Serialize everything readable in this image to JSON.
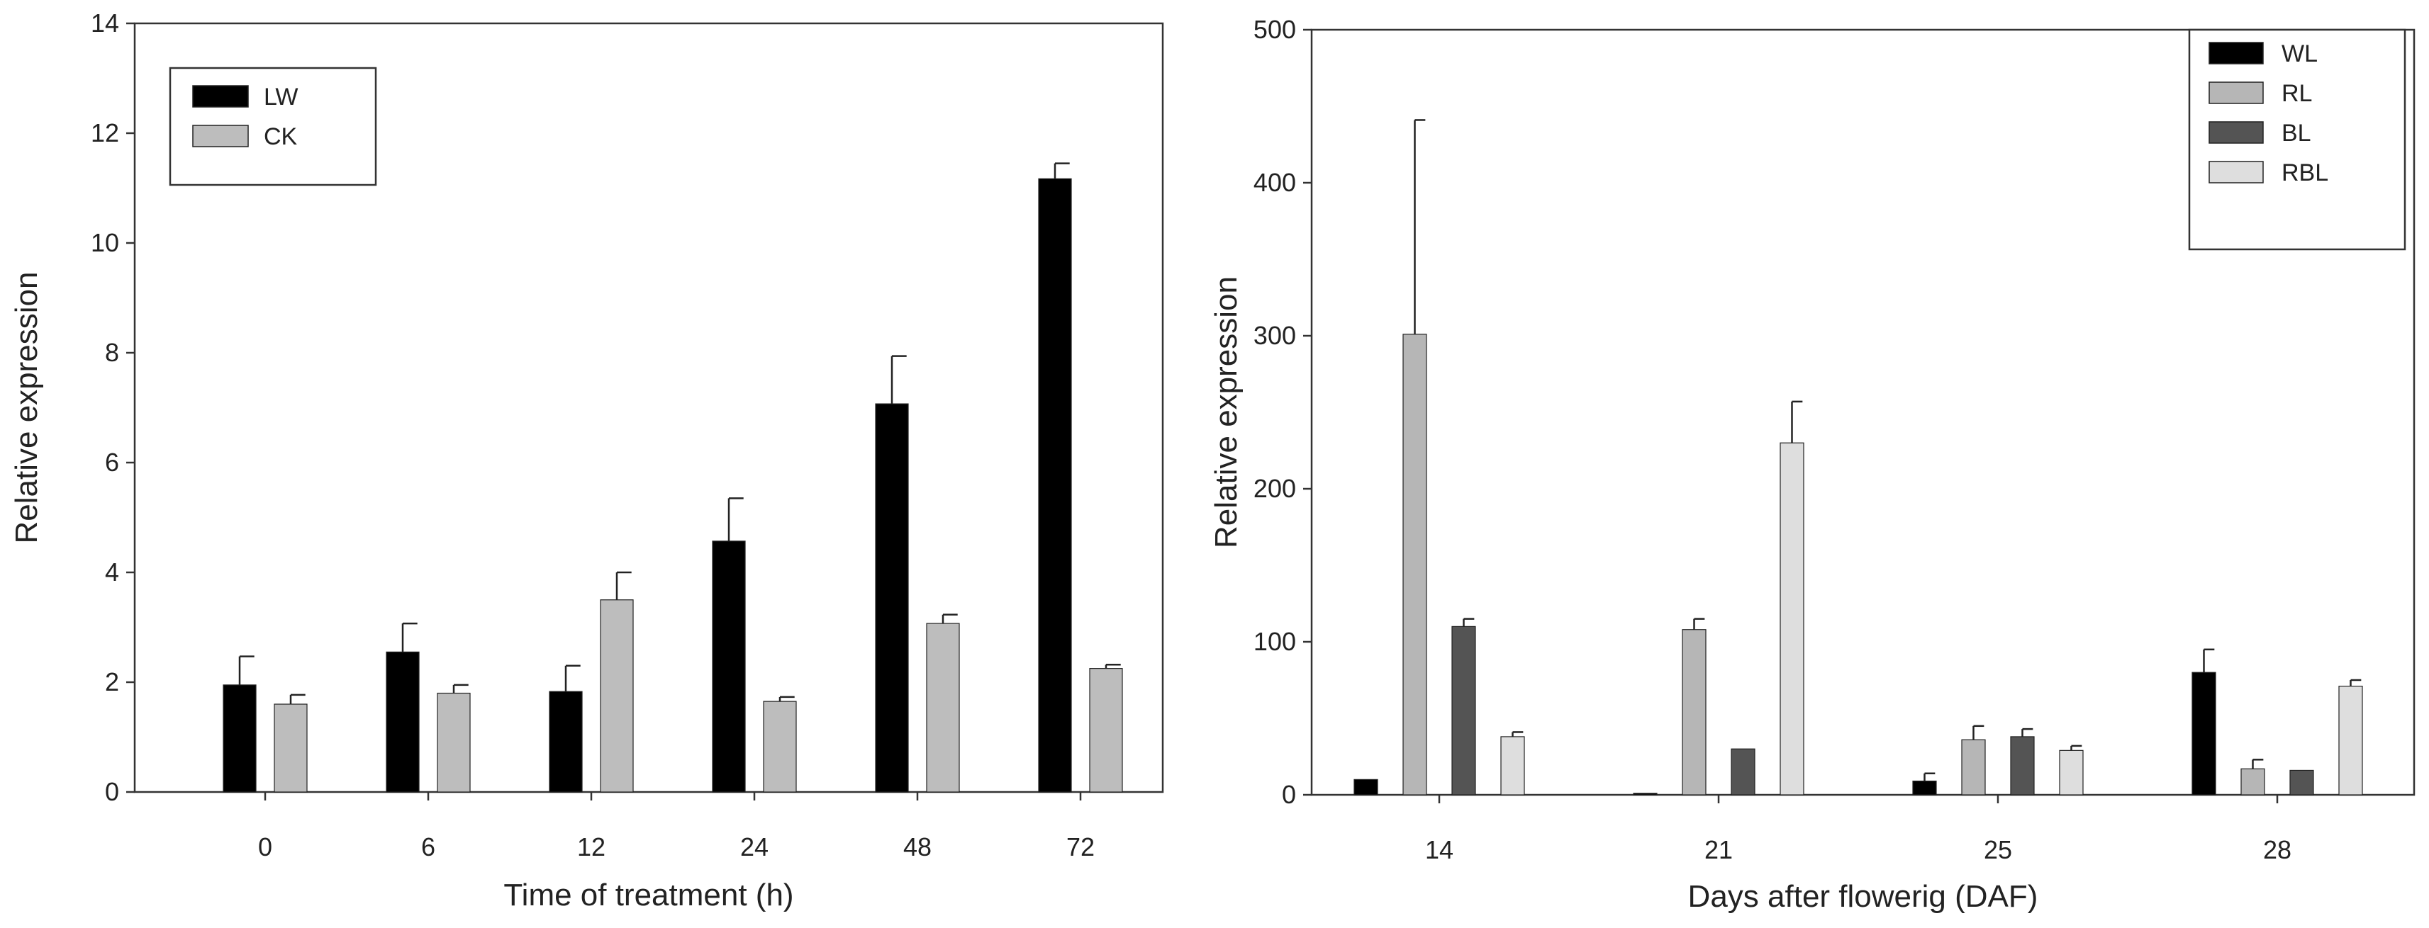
{
  "chart_data": [
    {
      "type": "bar",
      "xlabel": "Time of treatment (h)",
      "ylabel": "Relative expression",
      "categories": [
        "0",
        "6",
        "12",
        "24",
        "48",
        "72"
      ],
      "ylim": [
        0,
        14
      ],
      "yticks": [
        "0",
        "2",
        "4",
        "6",
        "8",
        "10",
        "12",
        "14"
      ],
      "legend_position": "top-left",
      "series": [
        {
          "name": "LW",
          "color": "#000000",
          "values": [
            1.95,
            2.55,
            1.83,
            4.57,
            7.07,
            11.17
          ],
          "errors": [
            0.52,
            0.52,
            0.47,
            0.78,
            0.87,
            0.28
          ]
        },
        {
          "name": "CK",
          "color": "#bdbdbd",
          "values": [
            1.6,
            1.8,
            3.5,
            1.65,
            3.07,
            2.25
          ],
          "errors": [
            0.17,
            0.15,
            0.5,
            0.08,
            0.16,
            0.07
          ]
        }
      ]
    },
    {
      "type": "bar",
      "xlabel": "Days after flowerig (DAF)",
      "ylabel": "Relative expression",
      "categories": [
        "14",
        "21",
        "25",
        "28"
      ],
      "ylim": [
        0,
        500
      ],
      "yticks": [
        "0",
        "100",
        "200",
        "300",
        "400",
        "500"
      ],
      "legend_position": "top-right",
      "series": [
        {
          "name": "WL",
          "color": "#000000",
          "values": [
            10,
            1,
            9,
            80
          ],
          "errors": [
            0,
            0,
            5,
            15
          ]
        },
        {
          "name": "RL",
          "color": "#b6b6b6",
          "values": [
            301,
            108,
            36,
            17
          ],
          "errors": [
            140,
            7,
            9,
            6
          ]
        },
        {
          "name": "BL",
          "color": "#545454",
          "values": [
            110,
            30,
            38,
            16
          ],
          "errors": [
            5,
            0,
            5,
            0
          ]
        },
        {
          "name": "RBL",
          "color": "#dedede",
          "values": [
            38,
            230,
            29,
            71
          ],
          "errors": [
            3,
            27,
            3,
            4
          ]
        }
      ]
    }
  ]
}
